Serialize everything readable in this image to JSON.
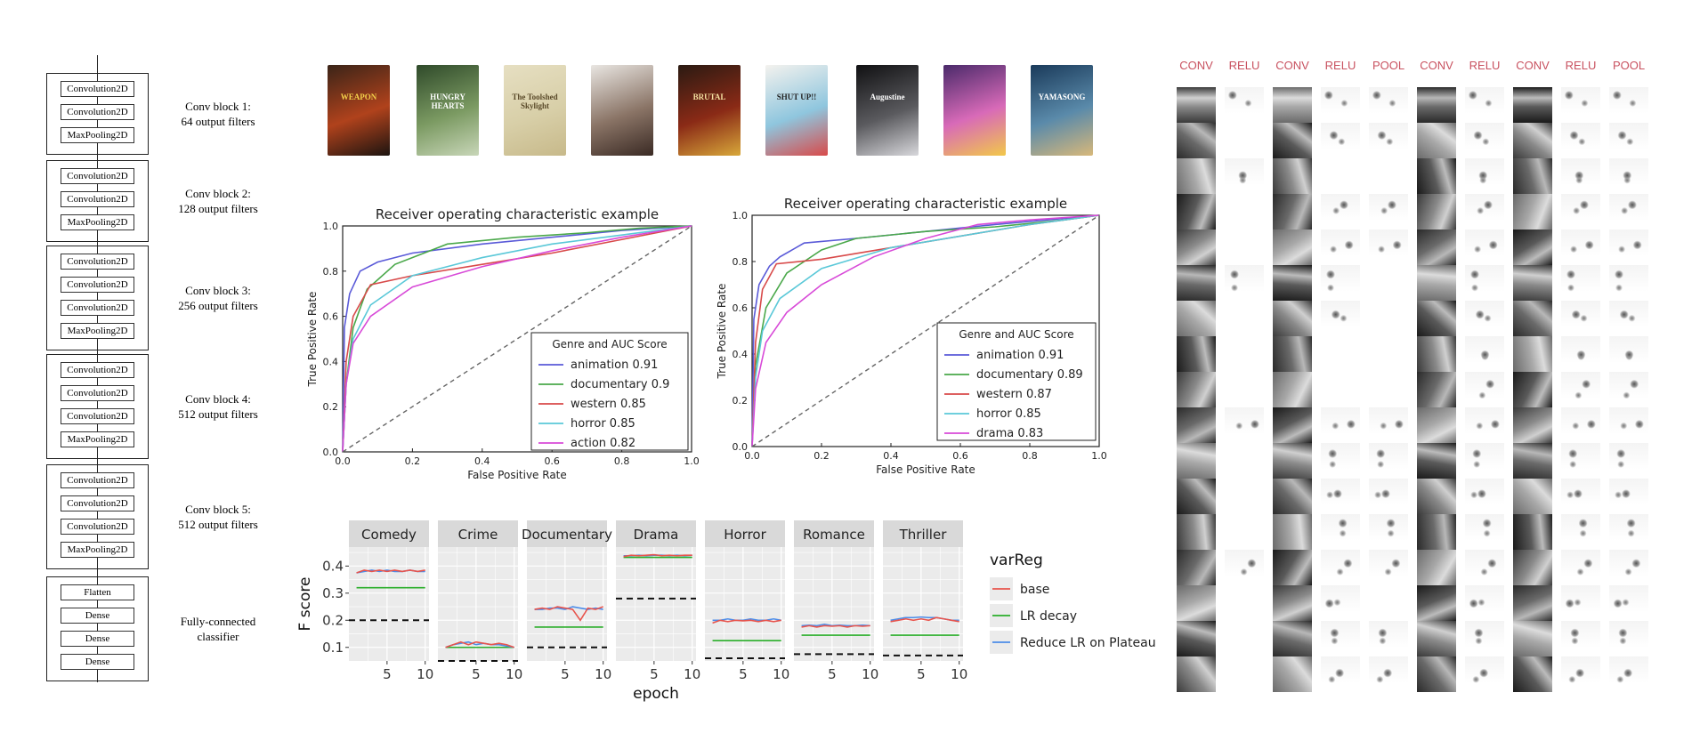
{
  "architecture": {
    "input_arrow": true,
    "blocks": [
      {
        "layers": [
          "Convolution2D",
          "Convolution2D",
          "MaxPooling2D"
        ],
        "caption": [
          "Conv block 1:",
          "64 output filters"
        ]
      },
      {
        "layers": [
          "Convolution2D",
          "Convolution2D",
          "MaxPooling2D"
        ],
        "caption": [
          "Conv block 2:",
          "128 output filters"
        ]
      },
      {
        "layers": [
          "Convolution2D",
          "Convolution2D",
          "Convolution2D",
          "MaxPooling2D"
        ],
        "caption": [
          "Conv block 3:",
          "256 output filters"
        ]
      },
      {
        "layers": [
          "Convolution2D",
          "Convolution2D",
          "Convolution2D",
          "MaxPooling2D"
        ],
        "caption": [
          "Conv block 4:",
          "512 output filters"
        ]
      },
      {
        "layers": [
          "Convolution2D",
          "Convolution2D",
          "Convolution2D",
          "MaxPooling2D"
        ],
        "caption": [
          "Conv block 5:",
          "512 output filters"
        ]
      },
      {
        "layers": [
          "Flatten",
          "Dense",
          "Dense",
          "Dense"
        ],
        "caption": [
          "Fully-connected",
          "classifier"
        ]
      }
    ]
  },
  "posters": [
    {
      "title": "WEAPON",
      "colors": [
        "#3a2418",
        "#b0421c",
        "#1c1410"
      ],
      "text_color": "#f2d04a"
    },
    {
      "title": "HUNGRY HEARTS",
      "colors": [
        "#2f4a2a",
        "#7b9a62",
        "#c8d6b8"
      ],
      "text_color": "#ffffff"
    },
    {
      "title": "The Toolshed Skylight",
      "colors": [
        "#e6dfc2",
        "#d8cfa8",
        "#c7b98a"
      ],
      "text_color": "#5a4a2a"
    },
    {
      "title": "",
      "colors": [
        "#e9e6e2",
        "#8a7466",
        "#3a2a24"
      ],
      "text_color": "#222222"
    },
    {
      "title": "BRUTAL",
      "colors": [
        "#2a1a12",
        "#8a2a16",
        "#d8a83a"
      ],
      "text_color": "#f4e0a0"
    },
    {
      "title": "SHUT UP!!",
      "colors": [
        "#f4f2ee",
        "#8fc6de",
        "#d84a4a"
      ],
      "text_color": "#222222"
    },
    {
      "title": "Augustine",
      "colors": [
        "#101012",
        "#5a5a5e",
        "#d8d8dc"
      ],
      "text_color": "#ffffff"
    },
    {
      "title": "",
      "colors": [
        "#4a2a6a",
        "#d86ab8",
        "#f2c84a"
      ],
      "text_color": "#ffffff"
    },
    {
      "title": "YAMASONG",
      "colors": [
        "#1a3a5a",
        "#5a8aaa",
        "#d8b87a"
      ],
      "text_color": "#ffffff"
    }
  ],
  "roc_charts": [
    {
      "title": "Receiver operating characteristic example",
      "xlabel": "False Positive Rate",
      "ylabel": "True Positive Rate",
      "legend_title": "Genre and AUC Score",
      "legend_entries": [
        "animation 0.91",
        "documentary 0.9",
        "western 0.85",
        "horror 0.85",
        "action 0.82"
      ],
      "x_ticks": [
        "0.0",
        "0.2",
        "0.4",
        "0.6",
        "0.8",
        "1.0"
      ],
      "y_ticks": [
        "0.0",
        "0.2",
        "0.4",
        "0.6",
        "0.8",
        "1.0"
      ]
    },
    {
      "title": "Receiver operating characteristic example",
      "xlabel": "False Positive Rate",
      "ylabel": "True Positive Rate",
      "legend_title": "Genre and AUC Score",
      "legend_entries": [
        "animation 0.91",
        "documentary 0.89",
        "western 0.87",
        "horror 0.85",
        "drama 0.83"
      ],
      "x_ticks": [
        "0.0",
        "0.2",
        "0.4",
        "0.6",
        "0.8",
        "1.0"
      ],
      "y_ticks": [
        "0.0",
        "0.2",
        "0.4",
        "0.6",
        "0.8",
        "1.0"
      ]
    }
  ],
  "fscore": {
    "ylabel": "F score",
    "xlabel": "epoch",
    "y_ticks": [
      "0.4",
      "0.3",
      "0.2",
      "0.1"
    ],
    "x_ticks": [
      "5",
      "10"
    ],
    "legend_title": "varReg",
    "legend_entries": [
      "base",
      "LR decay",
      "Reduce LR on Plateau"
    ],
    "panels": [
      "Comedy",
      "Crime",
      "Documentary",
      "Drama",
      "Horror",
      "Romance",
      "Thriller"
    ]
  },
  "feature_maps": {
    "labels": [
      "CONV",
      "RELU",
      "CONV",
      "RELU",
      "POOL",
      "CONV",
      "RELU",
      "CONV",
      "RELU",
      "POOL"
    ]
  },
  "colors": {
    "animation": "#5a5ad8",
    "documentary": "#4aa84a",
    "western": "#d84a4a",
    "horror": "#5ac8d8",
    "action": "#d84ad8",
    "base": "#e8544c",
    "lr_decay": "#2aae2a",
    "plateau": "#4c8ce8",
    "panel_bg": "#ebebeb",
    "strip_bg": "#d9d9d9",
    "fm_label": "#c8515f"
  },
  "chart_data": [
    {
      "type": "line",
      "title": "Receiver operating characteristic example",
      "xlabel": "False Positive Rate",
      "ylabel": "True Positive Rate",
      "xlim": [
        0,
        1
      ],
      "ylim": [
        0,
        1
      ],
      "legend_title": "Genre and AUC Score",
      "legend_position": "lower-right",
      "series": [
        {
          "name": "animation 0.91",
          "x": [
            0,
            0.005,
            0.02,
            0.05,
            0.1,
            0.2,
            0.4,
            0.6,
            0.8,
            1.0
          ],
          "y": [
            0,
            0.55,
            0.7,
            0.8,
            0.84,
            0.88,
            0.92,
            0.95,
            0.98,
            1.0
          ]
        },
        {
          "name": "documentary 0.9",
          "x": [
            0,
            0.01,
            0.03,
            0.07,
            0.15,
            0.3,
            0.5,
            0.7,
            0.85,
            1.0
          ],
          "y": [
            0,
            0.3,
            0.55,
            0.72,
            0.83,
            0.92,
            0.95,
            0.97,
            0.99,
            1.0
          ]
        },
        {
          "name": "western 0.85",
          "x": [
            0,
            0.01,
            0.03,
            0.08,
            0.2,
            0.4,
            0.6,
            0.8,
            1.0
          ],
          "y": [
            0,
            0.4,
            0.6,
            0.74,
            0.78,
            0.83,
            0.88,
            0.94,
            1.0
          ]
        },
        {
          "name": "horror 0.85",
          "x": [
            0,
            0.01,
            0.03,
            0.08,
            0.2,
            0.4,
            0.6,
            0.8,
            1.0
          ],
          "y": [
            0,
            0.3,
            0.5,
            0.65,
            0.78,
            0.86,
            0.92,
            0.96,
            1.0
          ]
        },
        {
          "name": "action 0.82",
          "x": [
            0,
            0.01,
            0.03,
            0.08,
            0.2,
            0.4,
            0.6,
            0.8,
            1.0
          ],
          "y": [
            0,
            0.3,
            0.48,
            0.6,
            0.73,
            0.82,
            0.89,
            0.95,
            1.0
          ]
        },
        {
          "name": "",
          "x": [
            0,
            1
          ],
          "y": [
            0,
            1
          ]
        }
      ]
    },
    {
      "type": "line",
      "title": "Receiver operating characteristic example",
      "xlabel": "False Positive Rate",
      "ylabel": "True Positive Rate",
      "xlim": [
        0,
        1
      ],
      "ylim": [
        0,
        1
      ],
      "legend_title": "Genre and AUC Score",
      "legend_position": "lower-right",
      "series": [
        {
          "name": "animation 0.91",
          "x": [
            0,
            0.005,
            0.02,
            0.05,
            0.08,
            0.15,
            0.3,
            0.5,
            0.7,
            1.0
          ],
          "y": [
            0,
            0.55,
            0.7,
            0.78,
            0.82,
            0.88,
            0.9,
            0.93,
            0.96,
            1.0
          ]
        },
        {
          "name": "documentary 0.89",
          "x": [
            0,
            0.01,
            0.04,
            0.1,
            0.2,
            0.3,
            0.5,
            0.7,
            0.9,
            1.0
          ],
          "y": [
            0,
            0.35,
            0.6,
            0.75,
            0.85,
            0.9,
            0.93,
            0.95,
            0.98,
            1.0
          ]
        },
        {
          "name": "western 0.87",
          "x": [
            0,
            0.01,
            0.03,
            0.07,
            0.2,
            0.4,
            0.6,
            0.8,
            1.0
          ],
          "y": [
            0,
            0.45,
            0.68,
            0.79,
            0.81,
            0.86,
            0.91,
            0.96,
            1.0
          ]
        },
        {
          "name": "horror 0.85",
          "x": [
            0,
            0.01,
            0.03,
            0.08,
            0.2,
            0.4,
            0.6,
            0.8,
            1.0
          ],
          "y": [
            0,
            0.3,
            0.5,
            0.64,
            0.77,
            0.86,
            0.91,
            0.96,
            1.0
          ]
        },
        {
          "name": "drama 0.83",
          "x": [
            0,
            0.01,
            0.04,
            0.1,
            0.2,
            0.35,
            0.5,
            0.65,
            0.8,
            1.0
          ],
          "y": [
            0,
            0.25,
            0.45,
            0.58,
            0.7,
            0.82,
            0.9,
            0.96,
            0.98,
            1.0
          ]
        },
        {
          "name": "",
          "x": [
            0,
            1
          ],
          "y": [
            0,
            1
          ]
        }
      ]
    },
    {
      "type": "line",
      "xlabel": "epoch",
      "ylabel": "F score",
      "ylim": [
        0.05,
        0.47
      ],
      "xlim": [
        0,
        10.5
      ],
      "legend_title": "varReg",
      "legend_position": "right",
      "facets": [
        {
          "name": "Comedy",
          "base": [
            0.375,
            0.385,
            0.38,
            0.385,
            0.38,
            0.385,
            0.38,
            0.385,
            0.38,
            0.385
          ],
          "lr_decay": [
            0.32,
            0.32,
            0.32,
            0.32,
            0.32,
            0.32,
            0.32,
            0.32,
            0.32,
            0.32
          ],
          "plateau": [
            0.375,
            0.38,
            0.385,
            0.38,
            0.385,
            0.38,
            0.38,
            0.385,
            0.38,
            0.38
          ],
          "baseline": 0.2
        },
        {
          "name": "Crime",
          "base": [
            0.1,
            0.11,
            0.12,
            0.11,
            0.12,
            0.115,
            0.11,
            0.115,
            0.11,
            0.1
          ],
          "lr_decay": [
            0.1,
            0.1,
            0.1,
            0.1,
            0.1,
            0.1,
            0.1,
            0.1,
            0.1,
            0.1
          ],
          "plateau": [
            0.1,
            0.11,
            0.115,
            0.12,
            0.11,
            0.115,
            0.11,
            0.11,
            0.105,
            0.1
          ],
          "baseline": 0.05
        },
        {
          "name": "Documentary",
          "base": [
            0.24,
            0.245,
            0.24,
            0.25,
            0.245,
            0.24,
            0.2,
            0.245,
            0.24,
            0.25
          ],
          "lr_decay": [
            0.175,
            0.175,
            0.175,
            0.175,
            0.175,
            0.175,
            0.175,
            0.175,
            0.175,
            0.175
          ],
          "plateau": [
            0.24,
            0.24,
            0.245,
            0.245,
            0.24,
            0.25,
            0.245,
            0.24,
            0.245,
            0.24
          ],
          "baseline": 0.1
        },
        {
          "name": "Drama",
          "base": [
            0.435,
            0.44,
            0.438,
            0.44,
            0.442,
            0.438,
            0.44,
            0.438,
            0.44,
            0.44
          ],
          "lr_decay": [
            0.432,
            0.432,
            0.432,
            0.432,
            0.432,
            0.432,
            0.432,
            0.432,
            0.432,
            0.432
          ],
          "plateau": [
            0.438,
            0.438,
            0.44,
            0.438,
            0.44,
            0.44,
            0.438,
            0.44,
            0.438,
            0.44
          ],
          "baseline": 0.28
        },
        {
          "name": "Horror",
          "base": [
            0.19,
            0.2,
            0.195,
            0.2,
            0.198,
            0.2,
            0.195,
            0.2,
            0.195,
            0.2
          ],
          "lr_decay": [
            0.125,
            0.125,
            0.125,
            0.125,
            0.125,
            0.125,
            0.125,
            0.125,
            0.125,
            0.125
          ],
          "plateau": [
            0.2,
            0.2,
            0.205,
            0.2,
            0.2,
            0.205,
            0.2,
            0.2,
            0.205,
            0.2
          ],
          "baseline": 0.06
        },
        {
          "name": "Romance",
          "base": [
            0.175,
            0.18,
            0.175,
            0.18,
            0.178,
            0.18,
            0.175,
            0.18,
            0.178,
            0.18
          ],
          "lr_decay": [
            0.145,
            0.145,
            0.145,
            0.145,
            0.145,
            0.145,
            0.145,
            0.145,
            0.145,
            0.145
          ],
          "plateau": [
            0.18,
            0.182,
            0.18,
            0.185,
            0.18,
            0.182,
            0.18,
            0.18,
            0.182,
            0.18
          ],
          "baseline": 0.075
        },
        {
          "name": "Thriller",
          "base": [
            0.195,
            0.2,
            0.205,
            0.2,
            0.205,
            0.2,
            0.21,
            0.205,
            0.2,
            0.195
          ],
          "lr_decay": [
            0.145,
            0.145,
            0.145,
            0.145,
            0.145,
            0.145,
            0.145,
            0.145,
            0.145,
            0.145
          ],
          "plateau": [
            0.2,
            0.205,
            0.21,
            0.21,
            0.212,
            0.21,
            0.21,
            0.205,
            0.2,
            0.2
          ],
          "baseline": 0.07
        }
      ]
    }
  ]
}
